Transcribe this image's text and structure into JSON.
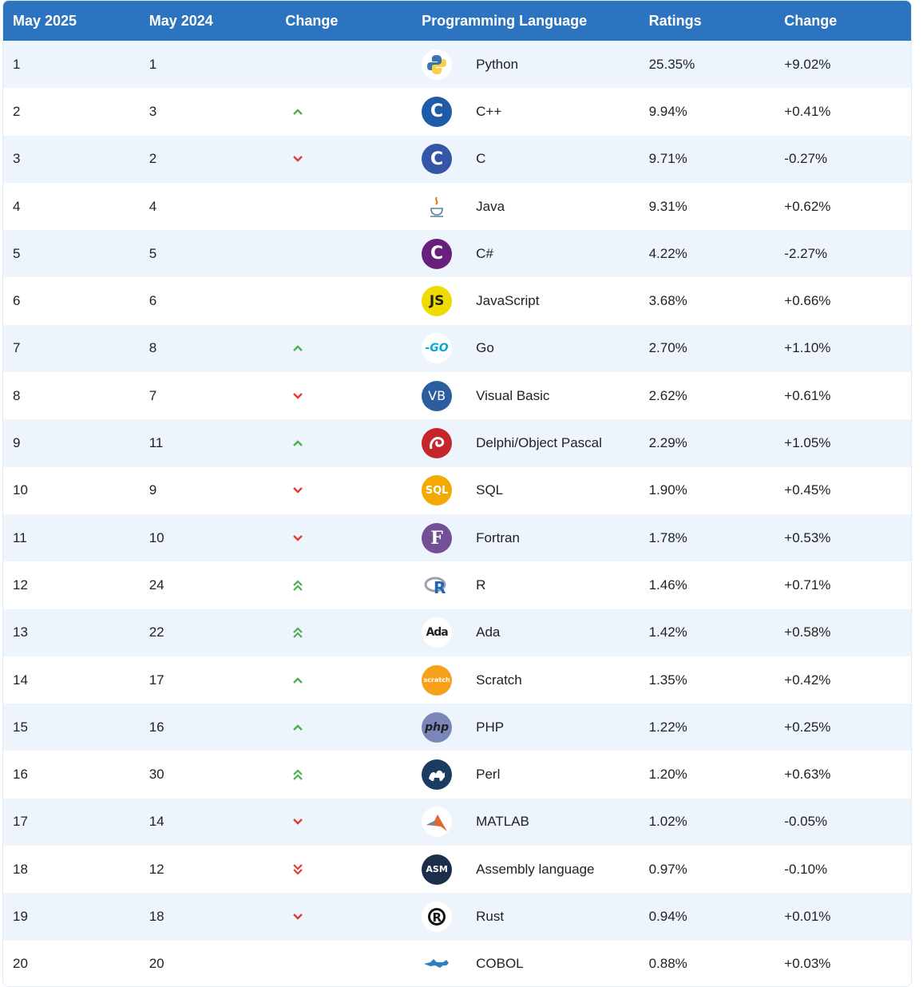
{
  "header": {
    "col1": "May 2025",
    "col2": "May 2024",
    "col3": "Change",
    "col4": "Programming Language",
    "col5": "Ratings",
    "col6": "Change"
  },
  "colors": {
    "header_bg": "#2c74c0",
    "up": "#4caf50",
    "down": "#e53935"
  },
  "rows": [
    {
      "rank": "1",
      "prev": "1",
      "trend": "none",
      "icon": "python-logo-icon",
      "language": "Python",
      "rating": "25.35%",
      "change": "+9.02%"
    },
    {
      "rank": "2",
      "prev": "3",
      "trend": "up",
      "icon": "cpp-logo-icon",
      "language": "C++",
      "rating": "9.94%",
      "change": "+0.41%"
    },
    {
      "rank": "3",
      "prev": "2",
      "trend": "down",
      "icon": "c-logo-icon",
      "language": "C",
      "rating": "9.71%",
      "change": "-0.27%"
    },
    {
      "rank": "4",
      "prev": "4",
      "trend": "none",
      "icon": "java-logo-icon",
      "language": "Java",
      "rating": "9.31%",
      "change": "+0.62%"
    },
    {
      "rank": "5",
      "prev": "5",
      "trend": "none",
      "icon": "csharp-logo-icon",
      "language": "C#",
      "rating": "4.22%",
      "change": "-2.27%"
    },
    {
      "rank": "6",
      "prev": "6",
      "trend": "none",
      "icon": "javascript-logo-icon",
      "language": "JavaScript",
      "rating": "3.68%",
      "change": "+0.66%"
    },
    {
      "rank": "7",
      "prev": "8",
      "trend": "up",
      "icon": "go-logo-icon",
      "language": "Go",
      "rating": "2.70%",
      "change": "+1.10%"
    },
    {
      "rank": "8",
      "prev": "7",
      "trend": "down",
      "icon": "visual-basic-logo-icon",
      "language": "Visual Basic",
      "rating": "2.62%",
      "change": "+0.61%"
    },
    {
      "rank": "9",
      "prev": "11",
      "trend": "up",
      "icon": "delphi-logo-icon",
      "language": "Delphi/Object Pascal",
      "rating": "2.29%",
      "change": "+1.05%"
    },
    {
      "rank": "10",
      "prev": "9",
      "trend": "down",
      "icon": "sql-logo-icon",
      "language": "SQL",
      "rating": "1.90%",
      "change": "+0.45%"
    },
    {
      "rank": "11",
      "prev": "10",
      "trend": "down",
      "icon": "fortran-logo-icon",
      "language": "Fortran",
      "rating": "1.78%",
      "change": "+0.53%"
    },
    {
      "rank": "12",
      "prev": "24",
      "trend": "up2",
      "icon": "r-logo-icon",
      "language": "R",
      "rating": "1.46%",
      "change": "+0.71%"
    },
    {
      "rank": "13",
      "prev": "22",
      "trend": "up2",
      "icon": "ada-logo-icon",
      "language": "Ada",
      "rating": "1.42%",
      "change": "+0.58%"
    },
    {
      "rank": "14",
      "prev": "17",
      "trend": "up",
      "icon": "scratch-logo-icon",
      "language": "Scratch",
      "rating": "1.35%",
      "change": "+0.42%"
    },
    {
      "rank": "15",
      "prev": "16",
      "trend": "up",
      "icon": "php-logo-icon",
      "language": "PHP",
      "rating": "1.22%",
      "change": "+0.25%"
    },
    {
      "rank": "16",
      "prev": "30",
      "trend": "up2",
      "icon": "perl-logo-icon",
      "language": "Perl",
      "rating": "1.20%",
      "change": "+0.63%"
    },
    {
      "rank": "17",
      "prev": "14",
      "trend": "down",
      "icon": "matlab-logo-icon",
      "language": "MATLAB",
      "rating": "1.02%",
      "change": "-0.05%"
    },
    {
      "rank": "18",
      "prev": "12",
      "trend": "down2",
      "icon": "assembly-logo-icon",
      "language": "Assembly language",
      "rating": "0.97%",
      "change": "-0.10%"
    },
    {
      "rank": "19",
      "prev": "18",
      "trend": "down",
      "icon": "rust-logo-icon",
      "language": "Rust",
      "rating": "0.94%",
      "change": "+0.01%"
    },
    {
      "rank": "20",
      "prev": "20",
      "trend": "none",
      "icon": "cobol-logo-icon",
      "language": "COBOL",
      "rating": "0.88%",
      "change": "+0.03%"
    }
  ]
}
